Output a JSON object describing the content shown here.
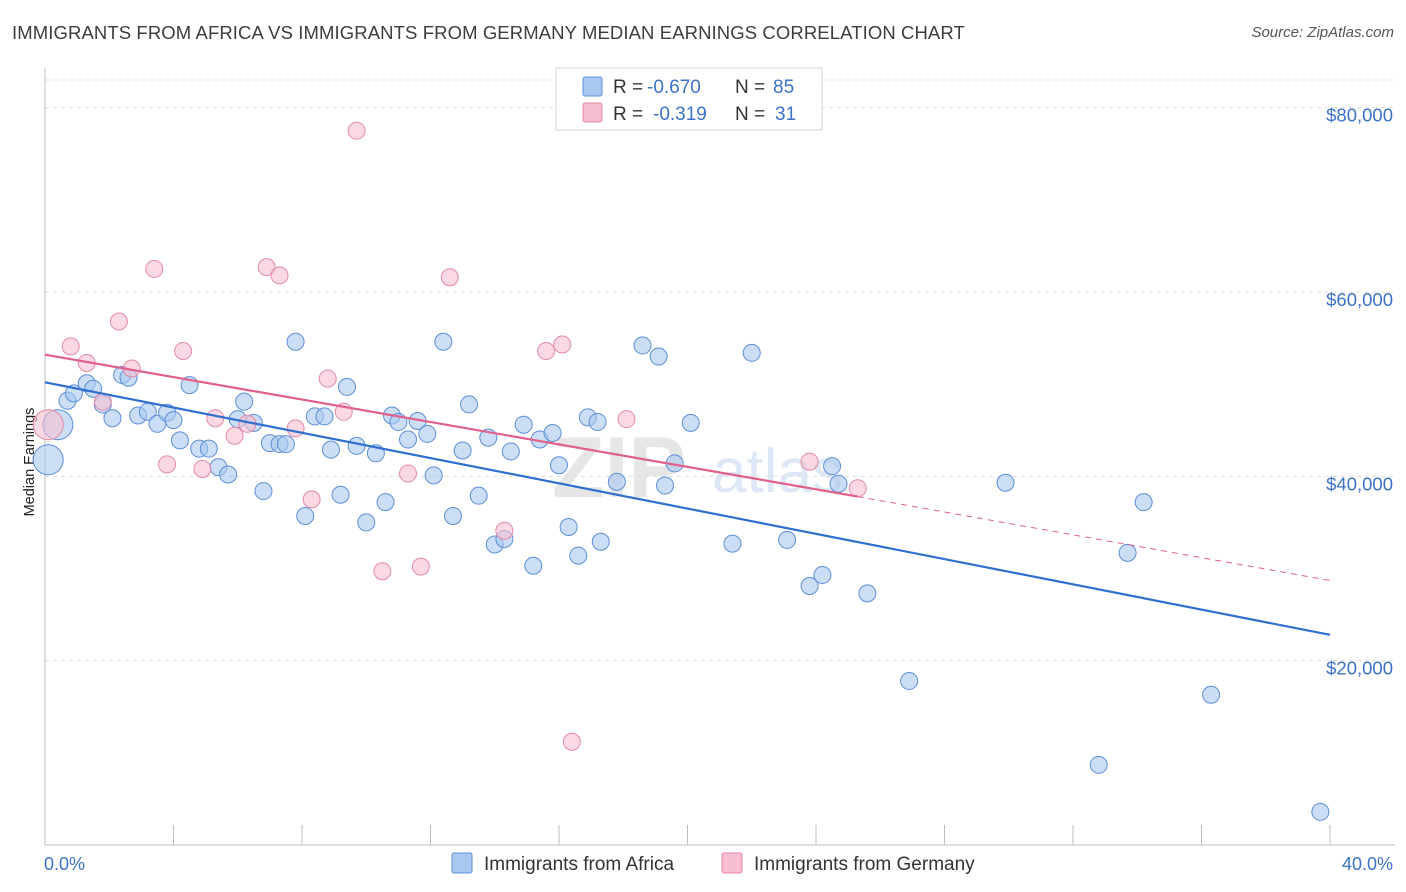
{
  "title": "IMMIGRANTS FROM AFRICA VS IMMIGRANTS FROM GERMANY MEDIAN EARNINGS CORRELATION CHART",
  "source": "Source: ZipAtlas.com",
  "watermark": {
    "zip": "ZIP",
    "atlas": "atlas"
  },
  "colors": {
    "africa_fill": "#a9c8ef",
    "africa_stroke": "#5d8fd6",
    "africa_line": "#2f6fd0",
    "germany_fill": "#f6bfd0",
    "germany_stroke": "#e38aa8",
    "germany_line": "#e0608a",
    "tick_text": "#3b73c7",
    "grid": "#dddddd"
  },
  "legend": {
    "rows": [
      {
        "r_label": "R =",
        "r_value": "-0.670",
        "n_label": "N =",
        "n_value": "85"
      },
      {
        "r_label": "R =",
        "r_value": "-0.319",
        "n_label": "N =",
        "n_value": "31"
      }
    ]
  },
  "bottom_legend": [
    "Immigrants from Africa",
    "Immigrants from Germany"
  ],
  "chart_data": {
    "type": "scatter",
    "xlabel": "",
    "ylabel": "Median Earnings",
    "xlim": [
      0,
      40
    ],
    "ylim": [
      0,
      83000
    ],
    "x_tick_labels": [
      "0.0%",
      "40.0%"
    ],
    "y_ticks": [
      20000,
      40000,
      60000,
      80000
    ],
    "y_tick_labels": [
      "$20,000",
      "$40,000",
      "$60,000",
      "$80,000"
    ],
    "grid": "horizontal dashed",
    "legend_position": "top-center",
    "series": [
      {
        "name": "Immigrants from Africa",
        "trend": {
          "x": [
            0,
            40
          ],
          "y": [
            50200,
            22800
          ]
        },
        "points": [
          [
            0.1,
            41800,
            2
          ],
          [
            0.4,
            45600,
            2
          ],
          [
            0.7,
            48200,
            1
          ],
          [
            0.9,
            49000,
            1
          ],
          [
            1.3,
            50100,
            1
          ],
          [
            1.5,
            49500,
            1
          ],
          [
            1.8,
            47800,
            1
          ],
          [
            2.1,
            46300,
            1
          ],
          [
            2.4,
            51000,
            1
          ],
          [
            2.6,
            50700,
            1
          ],
          [
            2.9,
            46600,
            1
          ],
          [
            3.2,
            47000,
            1
          ],
          [
            3.5,
            45700,
            1
          ],
          [
            3.8,
            46900,
            1
          ],
          [
            4.0,
            46100,
            1
          ],
          [
            4.2,
            43900,
            1
          ],
          [
            4.5,
            49900,
            1
          ],
          [
            4.8,
            43000,
            1
          ],
          [
            5.1,
            43000,
            1
          ],
          [
            5.4,
            41000,
            1
          ],
          [
            5.7,
            40200,
            1
          ],
          [
            6.0,
            46200,
            1
          ],
          [
            6.2,
            48100,
            1
          ],
          [
            6.5,
            45800,
            1
          ],
          [
            6.8,
            38400,
            1
          ],
          [
            7.0,
            43600,
            1
          ],
          [
            7.3,
            43500,
            1
          ],
          [
            7.5,
            43500,
            1
          ],
          [
            7.8,
            54600,
            1
          ],
          [
            8.1,
            35700,
            1
          ],
          [
            8.4,
            46500,
            1
          ],
          [
            8.7,
            46500,
            1
          ],
          [
            8.9,
            42900,
            1
          ],
          [
            9.2,
            38000,
            1
          ],
          [
            9.4,
            49700,
            1
          ],
          [
            9.7,
            43300,
            1
          ],
          [
            10.0,
            35000,
            1
          ],
          [
            10.3,
            42500,
            1
          ],
          [
            10.6,
            37200,
            1
          ],
          [
            10.8,
            46600,
            1
          ],
          [
            11.0,
            45900,
            1
          ],
          [
            11.3,
            44000,
            1
          ],
          [
            11.6,
            46000,
            1
          ],
          [
            11.9,
            44600,
            1
          ],
          [
            12.1,
            40100,
            1
          ],
          [
            12.4,
            54600,
            1
          ],
          [
            12.7,
            35700,
            1
          ],
          [
            13.0,
            42800,
            1
          ],
          [
            13.2,
            47800,
            1
          ],
          [
            13.5,
            37900,
            1
          ],
          [
            13.8,
            44200,
            1
          ],
          [
            14.0,
            32600,
            1
          ],
          [
            14.3,
            33200,
            1
          ],
          [
            14.5,
            42700,
            1
          ],
          [
            14.9,
            45600,
            1
          ],
          [
            15.2,
            30300,
            1
          ],
          [
            15.4,
            44000,
            1
          ],
          [
            15.8,
            44700,
            1
          ],
          [
            16.0,
            41200,
            1
          ],
          [
            16.3,
            34500,
            1
          ],
          [
            16.6,
            31400,
            1
          ],
          [
            16.9,
            46400,
            1
          ],
          [
            17.2,
            45900,
            1
          ],
          [
            17.3,
            32900,
            1
          ],
          [
            17.8,
            39400,
            1
          ],
          [
            18.6,
            54200,
            1
          ],
          [
            19.1,
            53000,
            1
          ],
          [
            19.3,
            39000,
            1
          ],
          [
            19.6,
            41400,
            1
          ],
          [
            20.1,
            45800,
            1
          ],
          [
            21.4,
            32700,
            1
          ],
          [
            22.0,
            53400,
            1
          ],
          [
            23.1,
            33100,
            1
          ],
          [
            23.8,
            28100,
            1
          ],
          [
            24.2,
            29300,
            1
          ],
          [
            24.5,
            41100,
            1
          ],
          [
            24.7,
            39200,
            1
          ],
          [
            25.6,
            27300,
            1
          ],
          [
            26.9,
            17800,
            1
          ],
          [
            29.9,
            39300,
            1
          ],
          [
            32.8,
            8700,
            1
          ],
          [
            33.7,
            31700,
            1
          ],
          [
            34.2,
            37200,
            1
          ],
          [
            36.3,
            16300,
            1
          ],
          [
            39.7,
            3600,
            1
          ]
        ]
      },
      {
        "name": "Immigrants from Germany",
        "trend": {
          "x": [
            0,
            25.3
          ],
          "y": [
            53200,
            37800
          ]
        },
        "trend_dashed": {
          "x": [
            25.3,
            40
          ],
          "y": [
            37800,
            28700
          ]
        },
        "points": [
          [
            0.1,
            45600,
            2
          ],
          [
            0.8,
            54100,
            1
          ],
          [
            1.3,
            52300,
            1
          ],
          [
            1.8,
            48100,
            1
          ],
          [
            2.3,
            56800,
            1
          ],
          [
            2.7,
            51700,
            1
          ],
          [
            3.4,
            62500,
            1
          ],
          [
            3.8,
            41300,
            1
          ],
          [
            4.3,
            53600,
            1
          ],
          [
            4.9,
            40800,
            1
          ],
          [
            5.3,
            46300,
            1
          ],
          [
            5.9,
            44400,
            1
          ],
          [
            6.3,
            45700,
            1
          ],
          [
            6.9,
            62700,
            1
          ],
          [
            7.3,
            61800,
            1
          ],
          [
            7.8,
            45200,
            1
          ],
          [
            8.3,
            37500,
            1
          ],
          [
            8.8,
            50600,
            1
          ],
          [
            9.3,
            47000,
            1
          ],
          [
            9.7,
            77500,
            1
          ],
          [
            10.5,
            29700,
            1
          ],
          [
            11.3,
            40300,
            1
          ],
          [
            11.7,
            30200,
            1
          ],
          [
            12.6,
            61600,
            1
          ],
          [
            14.3,
            34100,
            1
          ],
          [
            15.6,
            53600,
            1
          ],
          [
            16.1,
            54300,
            1
          ],
          [
            16.4,
            11200,
            1
          ],
          [
            18.1,
            46200,
            1
          ],
          [
            23.8,
            41600,
            1
          ],
          [
            25.3,
            38700,
            1
          ]
        ]
      }
    ]
  }
}
